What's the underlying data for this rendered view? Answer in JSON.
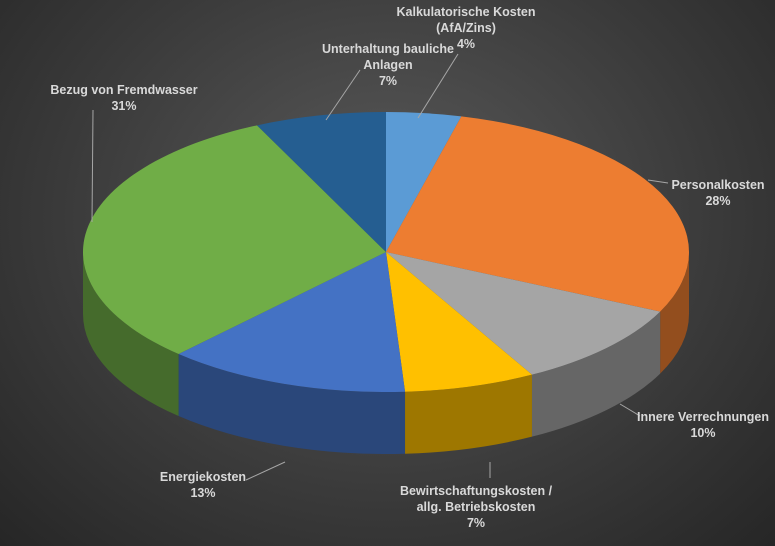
{
  "chart_data": {
    "type": "pie3d",
    "categories": [
      "Kalkulatorische Kosten (AfA/Zins)",
      "Personalkosten",
      "Innere Verrechnungen",
      "Bewirtschaftungskosten / allg. Betriebskosten",
      "Energiekosten",
      "Bezug von Fremdwasser",
      "Unterhaltung bauliche Anlagen"
    ],
    "values": [
      4,
      28,
      10,
      7,
      13,
      31,
      7
    ],
    "value_labels": [
      "4%",
      "28%",
      "10%",
      "7%",
      "13%",
      "31%",
      "7%"
    ],
    "colors": [
      "#5b9bd5",
      "#ed7d31",
      "#a5a5a5",
      "#ffc000",
      "#4472c4",
      "#70ad47",
      "#255e91"
    ]
  }
}
